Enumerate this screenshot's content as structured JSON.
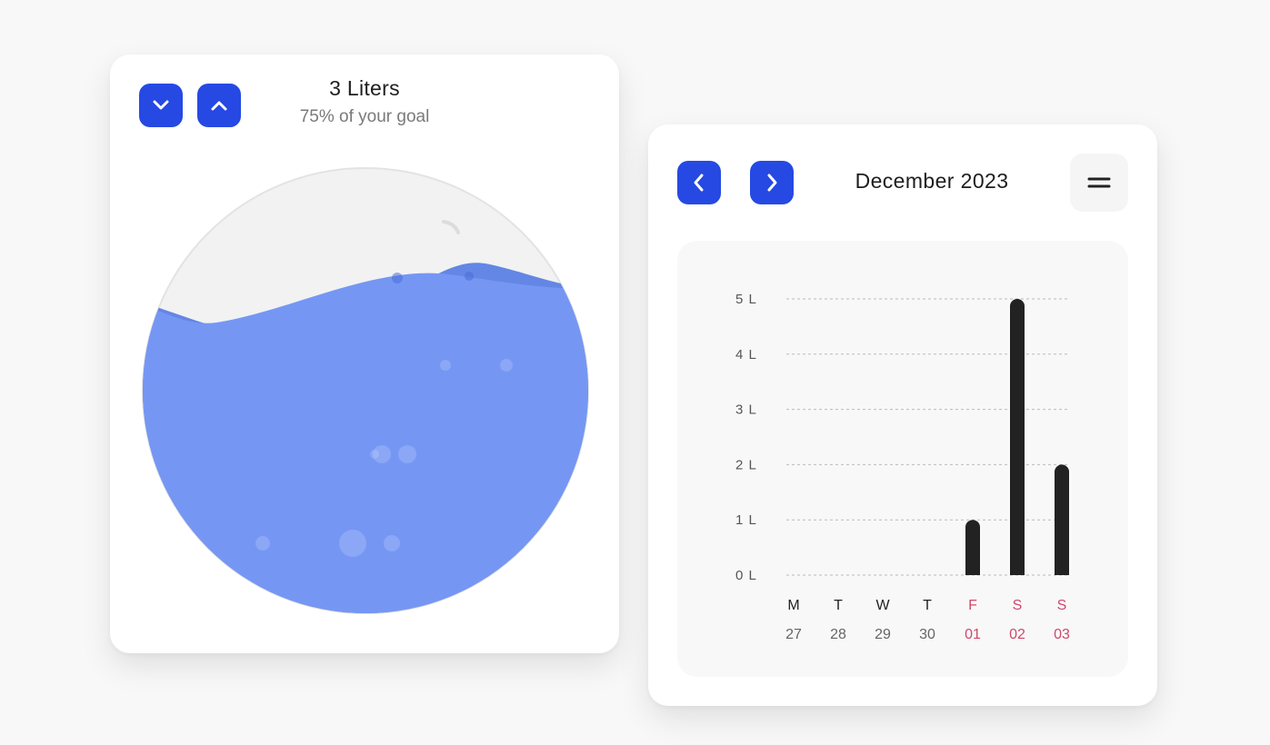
{
  "water": {
    "amount_label": "3 Liters",
    "goal_label": "75% of your goal",
    "fill_fraction": 0.75,
    "water_color": "#7597f3",
    "wave_back_color": "#6486e5",
    "accent": "#2649e3",
    "icons": {
      "decrease": "chevron-down-icon",
      "increase": "chevron-up-icon"
    }
  },
  "calendar": {
    "month_label": "December 2023",
    "icons": {
      "prev": "chevron-left-icon",
      "next": "chevron-right-icon",
      "menu": "menu-icon"
    }
  },
  "chart_data": {
    "type": "bar",
    "yticks": [
      "0 L",
      "1 L",
      "2 L",
      "3 L",
      "4 L",
      "5 L"
    ],
    "ylim": [
      0,
      5
    ],
    "days": [
      {
        "letter": "M",
        "date": "27",
        "weekend": false
      },
      {
        "letter": "T",
        "date": "28",
        "weekend": false
      },
      {
        "letter": "W",
        "date": "29",
        "weekend": false
      },
      {
        "letter": "T",
        "date": "30",
        "weekend": false
      },
      {
        "letter": "F",
        "date": "01",
        "weekend": true
      },
      {
        "letter": "S",
        "date": "02",
        "weekend": true
      },
      {
        "letter": "S",
        "date": "03",
        "weekend": true
      }
    ],
    "values": [
      0,
      0,
      0,
      0,
      1,
      5,
      2
    ],
    "bar_color": "#222222",
    "weekend_color": "#d0486a",
    "grid": true
  }
}
